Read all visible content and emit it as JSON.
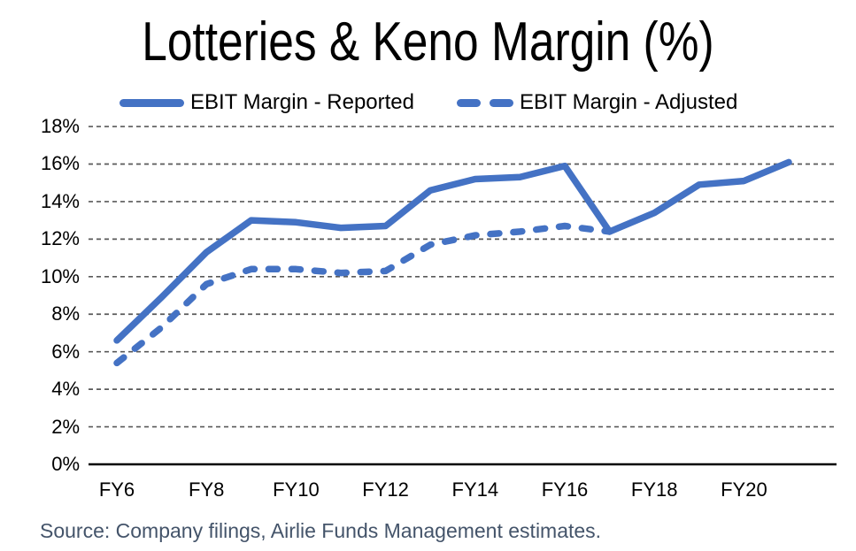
{
  "title": "Lotteries & Keno Margin (%)",
  "legend": {
    "reported_label": "EBIT Margin - Reported",
    "adjusted_label": "EBIT Margin - Adjusted"
  },
  "source": "Source: Company filings, Airlie Funds Management estimates.",
  "colors": {
    "line_blue": "#4472C4",
    "gridline_gray": "#595959",
    "axis_black": "#000000",
    "source_text": "#44546A"
  },
  "chart_data": {
    "type": "line",
    "title": "Lotteries & Keno Margin (%)",
    "x_unit": "fiscal year",
    "x": [
      6,
      7,
      8,
      9,
      10,
      11,
      12,
      13,
      14,
      15,
      16,
      17,
      18,
      19,
      20,
      21
    ],
    "x_tick_years": [
      6,
      8,
      10,
      12,
      14,
      16,
      18,
      20
    ],
    "x_tick_labels": [
      "FY6",
      "FY8",
      "FY10",
      "FY12",
      "FY14",
      "FY16",
      "FY18",
      "FY20"
    ],
    "ylim": [
      0,
      18
    ],
    "y_tick_values": [
      0,
      2,
      4,
      6,
      8,
      10,
      12,
      14,
      16,
      18
    ],
    "y_tick_labels": [
      "0%",
      "2%",
      "4%",
      "6%",
      "8%",
      "10%",
      "12%",
      "14%",
      "16%",
      "18%"
    ],
    "grid": "horizontal dashed, every 2%",
    "legend_position": "top",
    "series": [
      {
        "name": "EBIT Margin - Reported",
        "style": "solid",
        "x_start": 6,
        "values": [
          6.6,
          8.9,
          11.3,
          13.0,
          12.9,
          12.6,
          12.7,
          14.6,
          15.2,
          15.3,
          15.9,
          12.4,
          13.4,
          14.9,
          15.1,
          16.1
        ]
      },
      {
        "name": "EBIT Margin - Adjusted",
        "style": "dashed",
        "x_start": 6,
        "values": [
          5.4,
          7.3,
          9.6,
          10.4,
          10.4,
          10.2,
          10.3,
          11.7,
          12.2,
          12.4,
          12.7,
          12.4
        ]
      }
    ]
  }
}
